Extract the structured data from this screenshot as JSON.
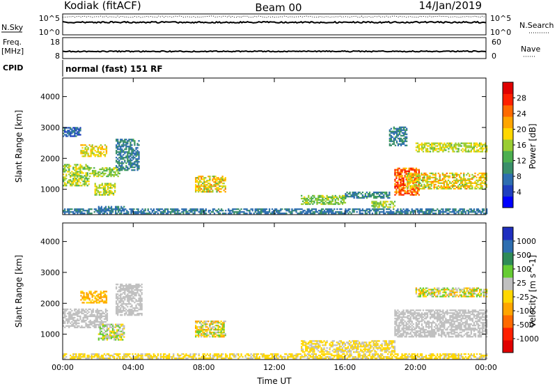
{
  "header": {
    "station": "Kodiak (fitACF)",
    "beam": "Beam 00",
    "date": "14/Jan/2019"
  },
  "panels": {
    "nsky": {
      "label": "N.Sky",
      "left_ticks": [
        "10^5",
        "10^0"
      ],
      "right_ticks": [
        "10^5",
        "10^0"
      ],
      "right_label": "N.Search"
    },
    "freq": {
      "label": "Freq.",
      "unit": "[MHz]",
      "left_ticks": [
        "18",
        "8"
      ],
      "right_ticks": [
        "60",
        "0"
      ],
      "right_label": "Nave"
    },
    "cpid": {
      "label": "CPID",
      "text": "normal (fast) 151 RF"
    }
  },
  "chart_data": [
    {
      "type": "heatmap",
      "name": "power",
      "ylabel": "Slant Range [km]",
      "yticks": [
        1000,
        2000,
        3000,
        4000
      ],
      "ylim": [
        180,
        4600
      ],
      "xticks": [
        "00:00",
        "04:00",
        "08:00",
        "12:00",
        "16:00",
        "20:00",
        "00:00"
      ],
      "xlim_hours": [
        0,
        24
      ],
      "colorbar": {
        "label": "Power [dB]",
        "ticks": [
          4,
          8,
          12,
          16,
          20,
          24,
          28
        ],
        "colors": [
          "#0000ff",
          "#1f3fbf",
          "#2e6eb0",
          "#3a8f6a",
          "#4caf50",
          "#9acd32",
          "#ffd700",
          "#ffa500",
          "#ff6a00",
          "#ff2000",
          "#e00000"
        ]
      },
      "regions": [
        {
          "t": [
            0.0,
            1.5
          ],
          "r": [
            1100,
            1800
          ],
          "c": [
            12,
            20
          ]
        },
        {
          "t": [
            1.0,
            2.5
          ],
          "r": [
            2050,
            2450
          ],
          "c": [
            16,
            22
          ]
        },
        {
          "t": [
            1.5,
            3.2
          ],
          "r": [
            1400,
            1700
          ],
          "c": [
            12,
            18
          ]
        },
        {
          "t": [
            1.8,
            3.0
          ],
          "r": [
            800,
            1200
          ],
          "c": [
            14,
            20
          ]
        },
        {
          "t": [
            0.0,
            1.0
          ],
          "r": [
            2700,
            3000
          ],
          "c": [
            4,
            10
          ]
        },
        {
          "t": [
            2.0,
            3.5
          ],
          "r": [
            280,
            420
          ],
          "c": [
            6,
            10
          ]
        },
        {
          "t": [
            3.0,
            4.3
          ],
          "r": [
            1600,
            2600
          ],
          "c": [
            6,
            12
          ]
        },
        {
          "t": [
            7.5,
            9.2
          ],
          "r": [
            900,
            1400
          ],
          "c": [
            14,
            24
          ]
        },
        {
          "t": [
            13.5,
            16.0
          ],
          "r": [
            500,
            800
          ],
          "c": [
            12,
            18
          ]
        },
        {
          "t": [
            16.0,
            18.5
          ],
          "r": [
            700,
            900
          ],
          "c": [
            6,
            12
          ]
        },
        {
          "t": [
            17.5,
            18.8
          ],
          "r": [
            400,
            600
          ],
          "c": [
            14,
            18
          ]
        },
        {
          "t": [
            18.8,
            20.2
          ],
          "r": [
            800,
            1700
          ],
          "c": [
            20,
            30
          ]
        },
        {
          "t": [
            19.5,
            24.0
          ],
          "r": [
            1000,
            1500
          ],
          "c": [
            14,
            24
          ]
        },
        {
          "t": [
            20.0,
            24.0
          ],
          "r": [
            2200,
            2500
          ],
          "c": [
            14,
            20
          ]
        },
        {
          "t": [
            18.5,
            19.5
          ],
          "r": [
            2400,
            3000
          ],
          "c": [
            6,
            12
          ]
        },
        {
          "t": [
            0.0,
            24.0
          ],
          "r": [
            200,
            340
          ],
          "c": [
            6,
            10
          ]
        }
      ]
    },
    {
      "type": "heatmap",
      "name": "velocity",
      "ylabel": "Slant Range [km]",
      "yticks": [
        1000,
        2000,
        3000,
        4000
      ],
      "ylim": [
        180,
        4600
      ],
      "xticks": [
        "00:00",
        "04:00",
        "08:00",
        "12:00",
        "16:00",
        "20:00",
        "00:00"
      ],
      "xlabel": "Time UT",
      "xlim_hours": [
        0,
        24
      ],
      "colorbar": {
        "label": "Velocity [m s^-1]",
        "ticks": [
          "1000",
          "500",
          "100",
          "25",
          "-25",
          "-100",
          "-500",
          "-1000"
        ],
        "colors": [
          "#1f2fbf",
          "#2e6eb0",
          "#2e8b57",
          "#66cc33",
          "#c0c0c0",
          "#ffd700",
          "#ffa500",
          "#ff6a00",
          "#ff2000",
          "#e00000"
        ]
      },
      "regions": [
        {
          "t": [
            0.0,
            2.5
          ],
          "r": [
            1200,
            1800
          ],
          "c": [
            -10,
            10
          ]
        },
        {
          "t": [
            1.0,
            2.5
          ],
          "r": [
            2000,
            2400
          ],
          "c": [
            -200,
            -50
          ]
        },
        {
          "t": [
            2.0,
            3.5
          ],
          "r": [
            800,
            1300
          ],
          "c": [
            -50,
            50
          ]
        },
        {
          "t": [
            3.0,
            4.5
          ],
          "r": [
            1600,
            2600
          ],
          "c": [
            -10,
            10
          ]
        },
        {
          "t": [
            7.5,
            9.2
          ],
          "r": [
            900,
            1400
          ],
          "c": [
            -150,
            100
          ]
        },
        {
          "t": [
            13.5,
            18.8
          ],
          "r": [
            400,
            800
          ],
          "c": [
            -80,
            10
          ]
        },
        {
          "t": [
            18.8,
            24.0
          ],
          "r": [
            900,
            1800
          ],
          "c": [
            -10,
            10
          ]
        },
        {
          "t": [
            20.0,
            24.0
          ],
          "r": [
            2200,
            2500
          ],
          "c": [
            -150,
            100
          ]
        },
        {
          "t": [
            0.0,
            24.0
          ],
          "r": [
            200,
            340
          ],
          "c": [
            -100,
            0
          ]
        }
      ]
    }
  ]
}
